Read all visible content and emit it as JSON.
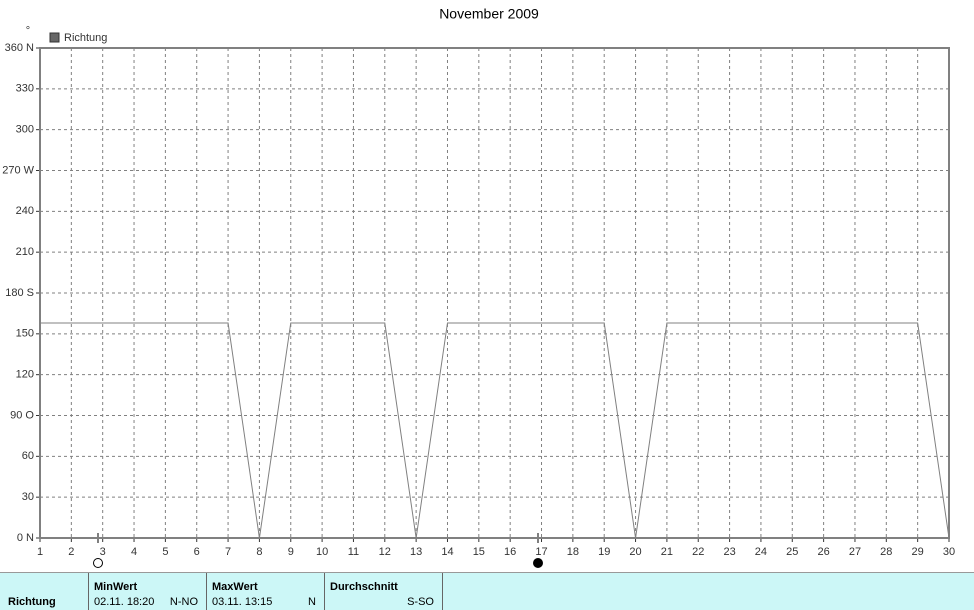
{
  "chart_data": {
    "type": "line",
    "title": "November 2009",
    "y_unit": "°",
    "x": [
      1,
      2,
      3,
      4,
      5,
      6,
      7,
      8,
      9,
      10,
      11,
      12,
      13,
      14,
      15,
      16,
      17,
      18,
      19,
      20,
      21,
      22,
      23,
      24,
      25,
      26,
      27,
      28,
      29,
      30
    ],
    "series": [
      {
        "name": "Richtung",
        "color": "#808080",
        "values": [
          158,
          158,
          158,
          158,
          158,
          158,
          158,
          0,
          158,
          158,
          158,
          158,
          0,
          158,
          158,
          158,
          158,
          158,
          158,
          0,
          158,
          158,
          158,
          158,
          158,
          158,
          158,
          158,
          158,
          0
        ]
      }
    ],
    "xlim": [
      1,
      30
    ],
    "xticks": [
      1,
      2,
      3,
      4,
      5,
      6,
      7,
      8,
      9,
      10,
      11,
      12,
      13,
      14,
      15,
      16,
      17,
      18,
      19,
      20,
      21,
      22,
      23,
      24,
      25,
      26,
      27,
      28,
      29,
      30
    ],
    "ylim": [
      0,
      360
    ],
    "yticks": [
      {
        "value": 0,
        "label": "0 N"
      },
      30,
      60,
      {
        "value": 90,
        "label": "90 O"
      },
      120,
      150,
      {
        "value": 180,
        "label": "180 S"
      },
      210,
      240,
      {
        "value": 270,
        "label": "270 W"
      },
      300,
      330,
      {
        "value": 360,
        "label": "360 N"
      }
    ],
    "grid": true
  },
  "table": {
    "row_label": "Richtung",
    "columns": [
      {
        "header": "MinWert",
        "time": "02.11.  18:20",
        "dir": "N-NO"
      },
      {
        "header": "MaxWert",
        "time": "03.11.  13:15",
        "dir": "N"
      },
      {
        "header": "Durchschnitt",
        "dir": "S-SO"
      }
    ]
  }
}
